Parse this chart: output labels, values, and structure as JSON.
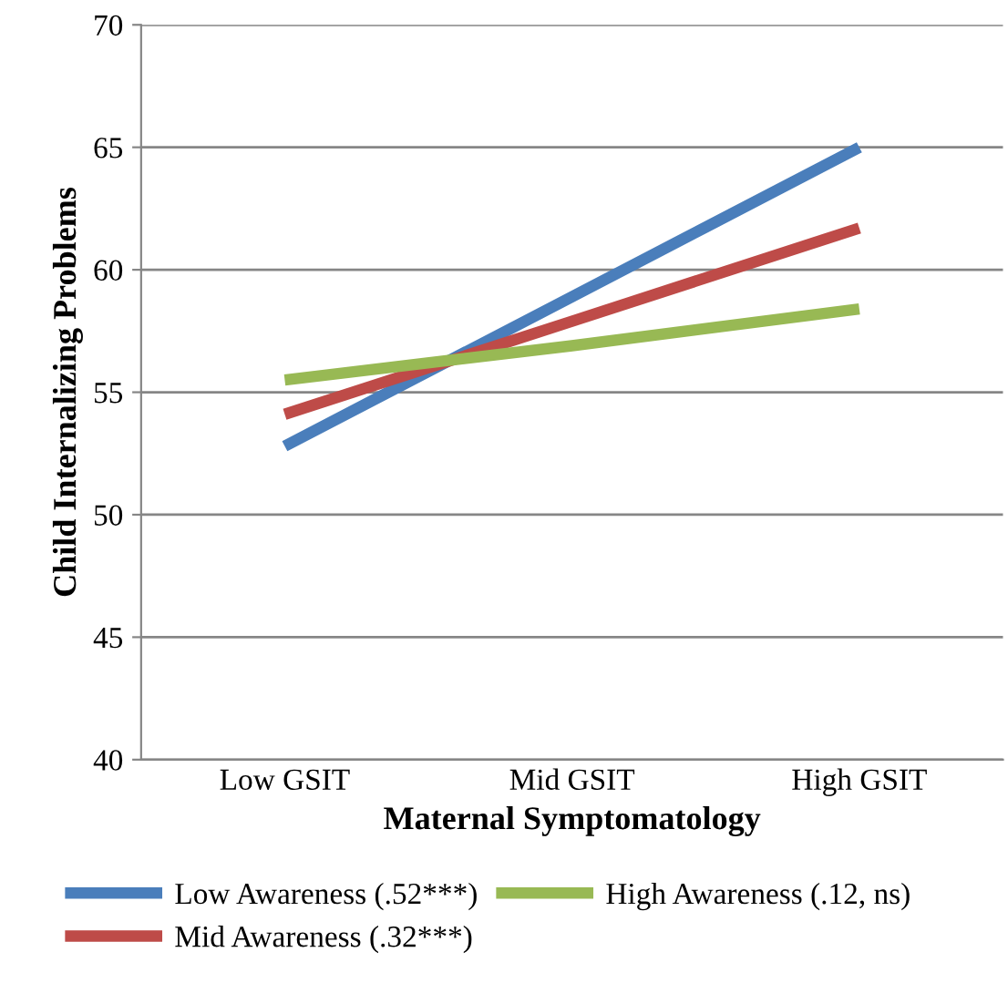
{
  "chart_data": {
    "type": "line",
    "xlabel": "Maternal Symptomatology",
    "ylabel": "Child Internalizing Problems",
    "categories": [
      "Low GSIT",
      "Mid GSIT",
      "High GSIT"
    ],
    "series": [
      {
        "name": "Low Awareness (.52***)",
        "color": "#4a7ebb",
        "values": [
          52.8,
          58.9,
          65
        ]
      },
      {
        "name": "Mid Awareness (.32***)",
        "color": "#be4b48",
        "values": [
          54.1,
          57.9,
          61.7
        ]
      },
      {
        "name": "High Awareness (.12, ns)",
        "color": "#98b954",
        "values": [
          55.5,
          56.9,
          58.4
        ]
      }
    ],
    "ylim": [
      40,
      70
    ],
    "yticks": [
      40,
      45,
      50,
      55,
      60,
      65,
      70
    ],
    "grid": "y",
    "legend": "bottom",
    "marker": "none",
    "line_style": "solid"
  }
}
